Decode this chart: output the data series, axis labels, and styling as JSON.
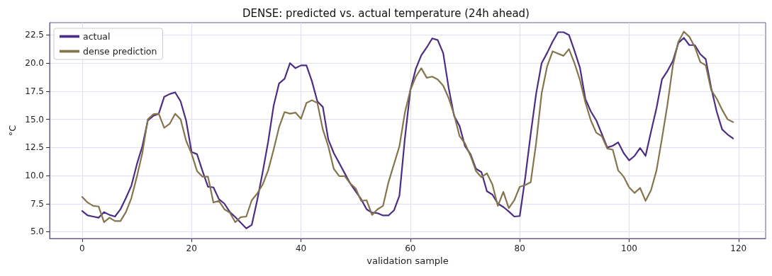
{
  "chart_data": {
    "type": "line",
    "title": "DENSE: predicted vs. actual temperature (24h ahead)",
    "xlabel": "validation sample",
    "ylabel": "°C",
    "x": [
      0,
      1,
      2,
      3,
      4,
      5,
      6,
      7,
      8,
      9,
      10,
      11,
      12,
      13,
      14,
      15,
      16,
      17,
      18,
      19,
      20,
      21,
      22,
      23,
      24,
      25,
      26,
      27,
      28,
      29,
      30,
      31,
      32,
      33,
      34,
      35,
      36,
      37,
      38,
      39,
      40,
      41,
      42,
      43,
      44,
      45,
      46,
      47,
      48,
      49,
      50,
      51,
      52,
      53,
      54,
      55,
      56,
      57,
      58,
      59,
      60,
      61,
      62,
      63,
      64,
      65,
      66,
      67,
      68,
      69,
      70,
      71,
      72,
      73,
      74,
      75,
      76,
      77,
      78,
      79,
      80,
      81,
      82,
      83,
      84,
      85,
      86,
      87,
      88,
      89,
      90,
      91,
      92,
      93,
      94,
      95,
      96,
      97,
      98,
      99,
      100,
      101,
      102,
      103,
      104,
      105,
      106,
      107,
      108,
      109,
      110,
      111,
      112,
      113,
      114,
      115,
      116,
      117,
      118,
      119
    ],
    "series": [
      {
        "name": "actual",
        "color": "#4b2e83",
        "values": [
          6.85,
          6.45,
          6.35,
          6.25,
          6.75,
          6.5,
          6.35,
          7.0,
          8.0,
          9.1,
          11.0,
          12.6,
          14.9,
          15.3,
          15.5,
          17.0,
          17.25,
          17.4,
          16.6,
          14.9,
          12.1,
          11.9,
          10.4,
          9.0,
          8.95,
          7.9,
          7.5,
          6.75,
          6.3,
          5.8,
          5.3,
          5.6,
          7.8,
          10.3,
          13.0,
          16.2,
          18.2,
          18.6,
          20.0,
          19.55,
          19.8,
          19.8,
          18.4,
          16.6,
          16.1,
          13.2,
          12.0,
          11.1,
          10.2,
          9.3,
          8.6,
          7.9,
          7.0,
          6.7,
          6.65,
          6.45,
          6.45,
          6.9,
          8.2,
          13.3,
          17.6,
          19.5,
          20.7,
          21.4,
          22.2,
          22.05,
          20.9,
          17.8,
          15.3,
          14.4,
          12.6,
          11.9,
          10.6,
          10.3,
          8.6,
          8.3,
          7.5,
          7.2,
          6.8,
          6.35,
          6.4,
          9.8,
          13.7,
          17.3,
          20.0,
          20.9,
          21.9,
          22.75,
          22.75,
          22.5,
          21.1,
          19.6,
          16.8,
          15.7,
          14.9,
          13.7,
          12.5,
          12.65,
          12.95,
          12.0,
          11.35,
          11.75,
          12.45,
          11.75,
          13.9,
          16.0,
          18.55,
          19.3,
          20.2,
          21.8,
          22.25,
          21.6,
          21.6,
          20.8,
          20.35,
          17.8,
          15.7,
          14.1,
          13.65,
          13.3
        ]
      },
      {
        "name": "dense prediction",
        "color": "#85754d",
        "values": [
          8.1,
          7.6,
          7.3,
          7.25,
          5.85,
          6.25,
          5.95,
          5.95,
          6.75,
          8.0,
          9.9,
          12.0,
          15.0,
          15.45,
          15.5,
          14.25,
          14.6,
          15.5,
          15.0,
          13.1,
          11.95,
          10.4,
          9.9,
          9.9,
          7.6,
          7.75,
          7.0,
          6.7,
          5.85,
          6.3,
          6.35,
          7.8,
          8.4,
          9.2,
          10.45,
          12.3,
          14.3,
          15.65,
          15.5,
          15.6,
          15.05,
          16.45,
          16.7,
          16.45,
          14.1,
          12.6,
          10.6,
          9.95,
          9.95,
          9.3,
          8.85,
          7.75,
          7.8,
          6.5,
          7.0,
          7.3,
          9.4,
          11.0,
          12.6,
          15.6,
          17.6,
          18.8,
          19.55,
          18.7,
          18.8,
          18.55,
          18.0,
          16.9,
          15.4,
          13.5,
          12.85,
          11.75,
          10.4,
          9.85,
          10.2,
          9.2,
          7.3,
          8.55,
          7.1,
          7.8,
          9.0,
          9.15,
          9.4,
          12.9,
          17.3,
          19.7,
          21.05,
          20.85,
          20.65,
          21.25,
          20.0,
          18.5,
          16.5,
          14.9,
          13.8,
          13.5,
          12.4,
          12.3,
          10.45,
          9.9,
          8.95,
          8.45,
          8.9,
          7.75,
          8.7,
          10.45,
          13.3,
          16.3,
          19.8,
          21.9,
          22.8,
          22.35,
          21.45,
          20.1,
          19.8,
          17.6,
          16.85,
          15.85,
          15.0,
          14.75
        ]
      }
    ],
    "xlim": [
      -5.95,
      124.95
    ],
    "xticks": [
      0,
      20,
      40,
      60,
      80,
      100,
      120
    ],
    "ylim": [
      4.4,
      23.6
    ],
    "yticks": [
      {
        "value": 5,
        "label": "5.0"
      },
      {
        "value": 7.5,
        "label": "7.5"
      },
      {
        "value": 10,
        "label": "10.0"
      },
      {
        "value": 12.5,
        "label": "12.5"
      },
      {
        "value": 15,
        "label": "15.0"
      },
      {
        "value": 17.5,
        "label": "17.5"
      },
      {
        "value": 20,
        "label": "20.0"
      },
      {
        "value": 22.5,
        "label": "22.5"
      }
    ],
    "grid": true,
    "legend": "top left",
    "marker": "none",
    "line_style": "solid"
  }
}
